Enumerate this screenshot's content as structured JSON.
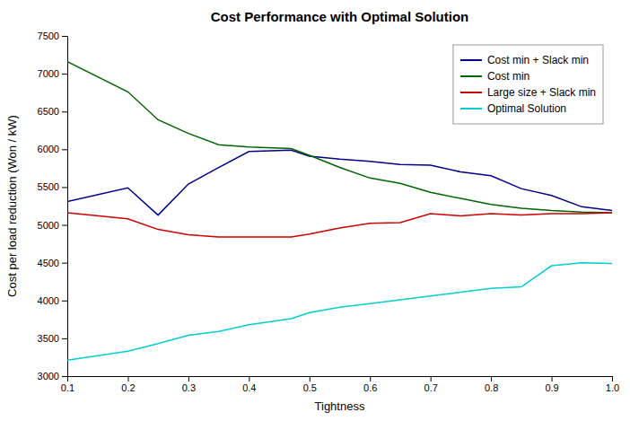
{
  "chart_data": {
    "type": "line",
    "title": "Cost Performance with Optimal Solution",
    "xlabel": "Tightness",
    "ylabel": "Cost per load reduction (Won / kW)",
    "x": [
      0.1,
      0.2,
      0.25,
      0.3,
      0.35,
      0.4,
      0.47,
      0.5,
      0.55,
      0.6,
      0.65,
      0.7,
      0.75,
      0.8,
      0.85,
      0.9,
      0.95,
      1.0
    ],
    "series": [
      {
        "name": "Cost min + Slack min",
        "color": "#00008B",
        "values": [
          5310,
          5490,
          5130,
          5540,
          5760,
          5970,
          5990,
          5910,
          5870,
          5840,
          5800,
          5790,
          5700,
          5650,
          5480,
          5390,
          5240,
          5190
        ]
      },
      {
        "name": "Cost min",
        "color": "#006400",
        "values": [
          7160,
          6760,
          6390,
          6210,
          6060,
          6030,
          6010,
          5920,
          5760,
          5620,
          5550,
          5430,
          5350,
          5270,
          5220,
          5190,
          5170,
          5160
        ]
      },
      {
        "name": "Large size + Slack min",
        "color": "#CC0000",
        "values": [
          5160,
          5080,
          4940,
          4870,
          4840,
          4840,
          4840,
          4880,
          4960,
          5020,
          5030,
          5150,
          5120,
          5150,
          5130,
          5150,
          5150,
          5160
        ]
      },
      {
        "name": "Optimal Solution",
        "color": "#00CED1",
        "values": [
          3210,
          3330,
          3430,
          3540,
          3590,
          3680,
          3760,
          3840,
          3910,
          3960,
          4010,
          4060,
          4110,
          4160,
          4180,
          4460,
          4500,
          4490
        ]
      }
    ],
    "xlim": [
      0.1,
      1.0
    ],
    "ylim": [
      3000,
      7500
    ],
    "xticks": [
      0.1,
      0.2,
      0.3,
      0.4,
      0.5,
      0.6,
      0.7,
      0.8,
      0.9,
      {
        "value": 1.0,
        "label": "1.0"
      }
    ],
    "yticks": [
      3000,
      3500,
      4000,
      4500,
      5000,
      5500,
      6000,
      6500,
      7000,
      7500
    ],
    "grid": false,
    "legend": "upper right"
  }
}
